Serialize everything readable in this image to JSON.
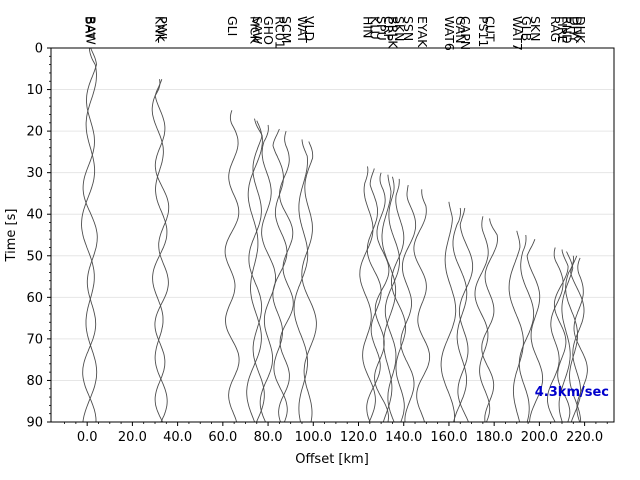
{
  "chart_data": {
    "type": "line",
    "title": "",
    "xlabel": "Offset [km]",
    "ylabel": "Time [s]",
    "xlim": [
      -16,
      233
    ],
    "ylim": [
      90,
      0
    ],
    "x_ticks": [
      0,
      20,
      40,
      60,
      80,
      100,
      120,
      140,
      160,
      180,
      200,
      220
    ],
    "x_tick_labels": [
      "0.0",
      "20.0",
      "40.0",
      "60.0",
      "80.0",
      "100.0",
      "120.0",
      "140.0",
      "160.0",
      "180.0",
      "200.0",
      "220.0"
    ],
    "y_ticks": [
      0,
      10,
      20,
      30,
      40,
      50,
      60,
      70,
      80,
      90
    ],
    "y_tick_labels": [
      "0",
      "10",
      "20",
      "30",
      "40",
      "50",
      "60",
      "70",
      "80",
      "90"
    ],
    "grid": "y",
    "annotation": {
      "text": "4.3km/sec",
      "color": "#0000cc"
    },
    "trace_color": "#4d4d4d",
    "stations": [
      {
        "name": "BAT",
        "offset": 1.0,
        "onset": 0.0
      },
      {
        "name": "BAW",
        "offset": 1.5,
        "onset": 0.0
      },
      {
        "name": "KNK",
        "offset": 32.0,
        "onset": 7.5
      },
      {
        "name": "PWL",
        "offset": 33.0,
        "onset": 7.5
      },
      {
        "name": "GLI",
        "offset": 64.0,
        "onset": 15.0
      },
      {
        "name": "MCK",
        "offset": 74.0,
        "onset": 17.0
      },
      {
        "name": "SAW",
        "offset": 75.0,
        "onset": 17.5
      },
      {
        "name": "GHO",
        "offset": 80.0,
        "onset": 18.5
      },
      {
        "name": "RC01",
        "offset": 85.0,
        "onset": 19.5
      },
      {
        "name": "SCM",
        "offset": 88.0,
        "onset": 20.0
      },
      {
        "name": "WAT",
        "offset": 95.0,
        "onset": 22.0
      },
      {
        "name": "VLD",
        "offset": 98.0,
        "onset": 22.5
      },
      {
        "name": "HIN",
        "offset": 124.0,
        "onset": 28.5
      },
      {
        "name": "KLU",
        "offset": 127.0,
        "onset": 29.0
      },
      {
        "name": "SPU",
        "offset": 130.0,
        "onset": 30.0
      },
      {
        "name": "CRP",
        "offset": 133.0,
        "onset": 30.5
      },
      {
        "name": "BRLK",
        "offset": 135.0,
        "onset": 31.0
      },
      {
        "name": "SKN",
        "offset": 138.0,
        "onset": 31.5
      },
      {
        "name": "SSN",
        "offset": 142.0,
        "onset": 33.0
      },
      {
        "name": "EYAK",
        "offset": 148.0,
        "onset": 34.0
      },
      {
        "name": "WAT6",
        "offset": 160.0,
        "onset": 37.0
      },
      {
        "name": "GAN",
        "offset": 165.0,
        "onset": 38.5
      },
      {
        "name": "CAPN",
        "offset": 167.0,
        "onset": 38.5
      },
      {
        "name": "PS11",
        "offset": 175.0,
        "onset": 40.5
      },
      {
        "name": "CUT",
        "offset": 178.0,
        "onset": 41.0
      },
      {
        "name": "WAT7",
        "offset": 190.0,
        "onset": 44.0
      },
      {
        "name": "GLB",
        "offset": 194.0,
        "onset": 45.0
      },
      {
        "name": "SKN",
        "offset": 198.0,
        "onset": 46.0
      },
      {
        "name": "RAG",
        "offset": 207.0,
        "onset": 48.0
      },
      {
        "name": "FIRE",
        "offset": 210.0,
        "onset": 48.5
      },
      {
        "name": "RND",
        "offset": 212.0,
        "onset": 49.0
      },
      {
        "name": "DHY",
        "offset": 215.0,
        "onset": 50.0
      },
      {
        "name": "DIV",
        "offset": 216.5,
        "onset": 50.0
      },
      {
        "name": "DHK",
        "offset": 218.0,
        "onset": 50.5
      }
    ]
  }
}
